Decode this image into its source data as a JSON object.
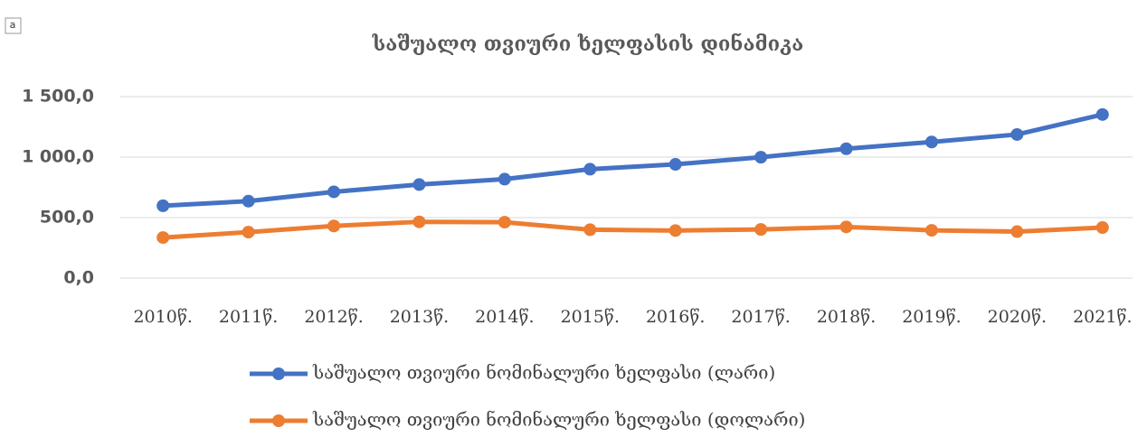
{
  "corner_label": "a",
  "chart_data": {
    "type": "line",
    "title": "საშუალო თვიური ხელფასის დინამიკა",
    "categories": [
      "2010წ.",
      "2011წ.",
      "2012წ.",
      "2013წ.",
      "2014წ.",
      "2015წ.",
      "2016წ.",
      "2017წ.",
      "2018წ.",
      "2019წ.",
      "2020წ.",
      "2021წ."
    ],
    "series": [
      {
        "name": "საშუალო თვიური ნომინალური ხელფასი (ლარი)",
        "color": "#4472c4",
        "values": [
          598,
          636,
          713,
          773,
          818,
          900,
          940,
          999,
          1069,
          1125,
          1187,
          1352
        ]
      },
      {
        "name": "საშუალო თვიური ნომინალური ხელფასი (დოლარი)",
        "color": "#ed7d31",
        "values": [
          335,
          380,
          431,
          465,
          462,
          400,
          393,
          402,
          423,
          395,
          384,
          418
        ]
      }
    ],
    "ylim": [
      0,
      1500
    ],
    "yticks": [
      {
        "value": 0,
        "label": "0,0"
      },
      {
        "value": 500,
        "label": "500,0"
      },
      {
        "value": 1000,
        "label": "1 000,0"
      },
      {
        "value": 1500,
        "label": "1 500,0"
      }
    ],
    "grid": true,
    "legend": "bottom"
  }
}
